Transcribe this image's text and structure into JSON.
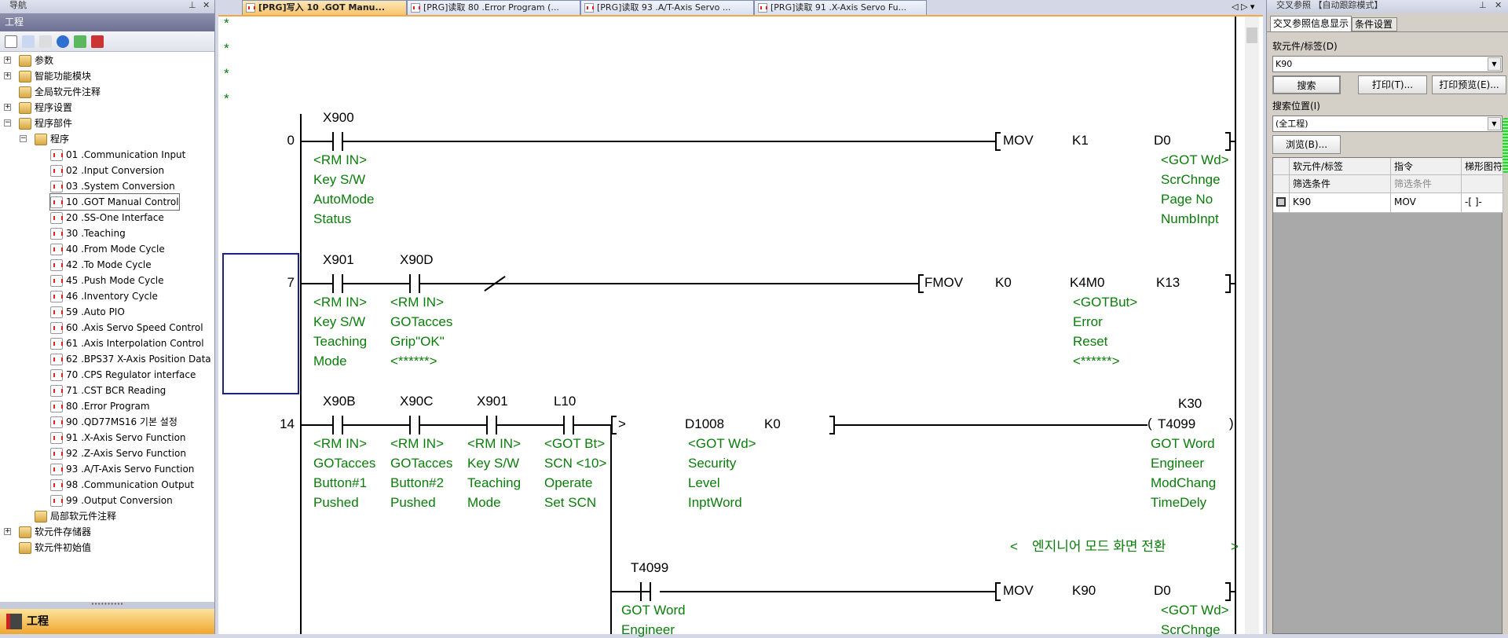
{
  "nav": {
    "title": "导航",
    "header": "工程",
    "bottom_label": "工程",
    "tree": [
      {
        "label": "参数",
        "level": 0,
        "exp": "+"
      },
      {
        "label": "智能功能模块",
        "level": 0,
        "exp": "+"
      },
      {
        "label": "全局软元件注释",
        "level": 0,
        "exp": ""
      },
      {
        "label": "程序设置",
        "level": 0,
        "exp": "+"
      },
      {
        "label": "程序部件",
        "level": 0,
        "exp": "-"
      },
      {
        "label": "程序",
        "level": 1,
        "exp": "-"
      },
      {
        "label": "01 .Communication Input",
        "level": 2,
        "prg": true
      },
      {
        "label": "02 .Input Conversion",
        "level": 2,
        "prg": true
      },
      {
        "label": "03 .System Conversion",
        "level": 2,
        "prg": true
      },
      {
        "label": "10 .GOT Manual Control",
        "level": 2,
        "prg": true,
        "selected": true
      },
      {
        "label": "20 .SS-One Interface",
        "level": 2,
        "prg": true
      },
      {
        "label": "30 .Teaching",
        "level": 2,
        "prg": true
      },
      {
        "label": "40 .From Mode Cycle",
        "level": 2,
        "prg": true
      },
      {
        "label": "42 .To Mode Cycle",
        "level": 2,
        "prg": true
      },
      {
        "label": "45 .Push Mode Cycle",
        "level": 2,
        "prg": true
      },
      {
        "label": "46 .Inventory Cycle",
        "level": 2,
        "prg": true
      },
      {
        "label": "59 .Auto PIO",
        "level": 2,
        "prg": true
      },
      {
        "label": "60 .Axis Servo Speed Control",
        "level": 2,
        "prg": true
      },
      {
        "label": "61 .Axis Interpolation Control",
        "level": 2,
        "prg": true
      },
      {
        "label": "62 .BPS37 X-Axis Position Data",
        "level": 2,
        "prg": true
      },
      {
        "label": "70 .CPS Regulator interface",
        "level": 2,
        "prg": true
      },
      {
        "label": "71 .CST BCR Reading",
        "level": 2,
        "prg": true
      },
      {
        "label": "80 .Error Program",
        "level": 2,
        "prg": true
      },
      {
        "label": "90 .QD77MS16 기본 설정",
        "level": 2,
        "prg": true
      },
      {
        "label": "91 .X-Axis Servo Function",
        "level": 2,
        "prg": true
      },
      {
        "label": "92 .Z-Axis Servo Function",
        "level": 2,
        "prg": true
      },
      {
        "label": "93 .A/T-Axis Servo Function",
        "level": 2,
        "prg": true
      },
      {
        "label": "98 .Communication Output",
        "level": 2,
        "prg": true
      },
      {
        "label": "99 .Output Conversion",
        "level": 2,
        "prg": true
      },
      {
        "label": "局部软元件注释",
        "level": 1,
        "exp": ""
      },
      {
        "label": "软元件存储器",
        "level": 0,
        "exp": "+"
      },
      {
        "label": "软元件初始值",
        "level": 0,
        "exp": ""
      }
    ]
  },
  "tabs": [
    {
      "label": "[PRG]写入 10 .GOT Manu...",
      "active": true
    },
    {
      "label": "[PRG]读取 80 .Error Program (..."
    },
    {
      "label": "[PRG]读取 93 .A/T-Axis Servo ..."
    },
    {
      "label": "[PRG]读取 91 .X-Axis Servo Fu..."
    }
  ],
  "ladder": {
    "stars": [
      "*",
      "*",
      "*",
      "*"
    ],
    "rungs": [
      {
        "step": "0",
        "contacts": [
          {
            "device": "X900",
            "comment": [
              "<RM  IN>",
              "Key S/W",
              "AutoMode",
              "Status"
            ]
          }
        ],
        "instruction": {
          "parts": [
            "MOV",
            "K1",
            "D0"
          ],
          "comment": [
            "<GOT Wd>",
            "ScrChnge",
            "Page  No",
            "NumbInpt"
          ]
        }
      },
      {
        "step": "7",
        "contacts": [
          {
            "device": "X901",
            "comment": [
              "<RM  IN>",
              "Key S/W",
              "Teaching",
              "Mode"
            ]
          },
          {
            "device": "X90D",
            "comment": [
              "<RM  IN>",
              "GOTacces",
              "Grip\"OK\"",
              "<******>"
            ]
          }
        ],
        "instruction": {
          "parts": [
            "FMOV",
            "K0",
            "K4M0",
            "K13"
          ],
          "comment": [
            "<GOTBut>",
            "Error",
            "Reset",
            "<******>"
          ]
        }
      },
      {
        "step": "14",
        "contacts": [
          {
            "device": "X90B",
            "comment": [
              "<RM  IN>",
              "GOTacces",
              "Button#1",
              "Pushed"
            ]
          },
          {
            "device": "X90C",
            "comment": [
              "<RM  IN>",
              "GOTacces",
              "Button#2",
              "Pushed"
            ]
          },
          {
            "device": "X901",
            "comment": [
              "<RM  IN>",
              "Key S/W",
              "Teaching",
              "Mode"
            ]
          },
          {
            "device": "L10",
            "comment": [
              "<GOT Bt>",
              "SCN <10>",
              "Operate",
              "Set SCN"
            ]
          }
        ],
        "compare": {
          "parts": [
            ">",
            "D1008",
            "K0"
          ],
          "comment": [
            "<GOT Wd>",
            "Security",
            "Level",
            "InptWord"
          ]
        },
        "coil": {
          "device": "T4099",
          "setting": "K30",
          "comment": [
            "GOT Word",
            "Engineer",
            "ModChang",
            "TimeDely"
          ]
        },
        "statement": {
          "open": "<",
          "text": "엔지니어 모드 화면 전환",
          "close": ">"
        },
        "branch": {
          "contact": {
            "device": "T4099",
            "comment": [
              "GOT Word",
              "Engineer"
            ]
          },
          "instruction": {
            "parts": [
              "MOV",
              "K90",
              "D0"
            ],
            "comment": [
              "<GOT Wd>",
              "ScrChnge"
            ]
          }
        }
      }
    ]
  },
  "cross_ref": {
    "title": "交叉参照 【自动跟踪模式】",
    "tabs": [
      "交叉参照信息显示",
      "条件设置"
    ],
    "device_label": "软元件/标签(D)",
    "device_value": "K90",
    "search_button": "搜索",
    "print_button": "打印(T)...",
    "preview_button": "打印预览(E)...",
    "location_label": "搜索位置(I)",
    "location_value": "(全工程)",
    "browse_button": "浏览(B)...",
    "columns": [
      "软元件/标签",
      "指令",
      "梯形图符"
    ],
    "filter_row": [
      "筛选条件",
      "筛选条件",
      ""
    ],
    "rows": [
      [
        "K90",
        "MOV",
        "-[ ]-"
      ]
    ]
  }
}
